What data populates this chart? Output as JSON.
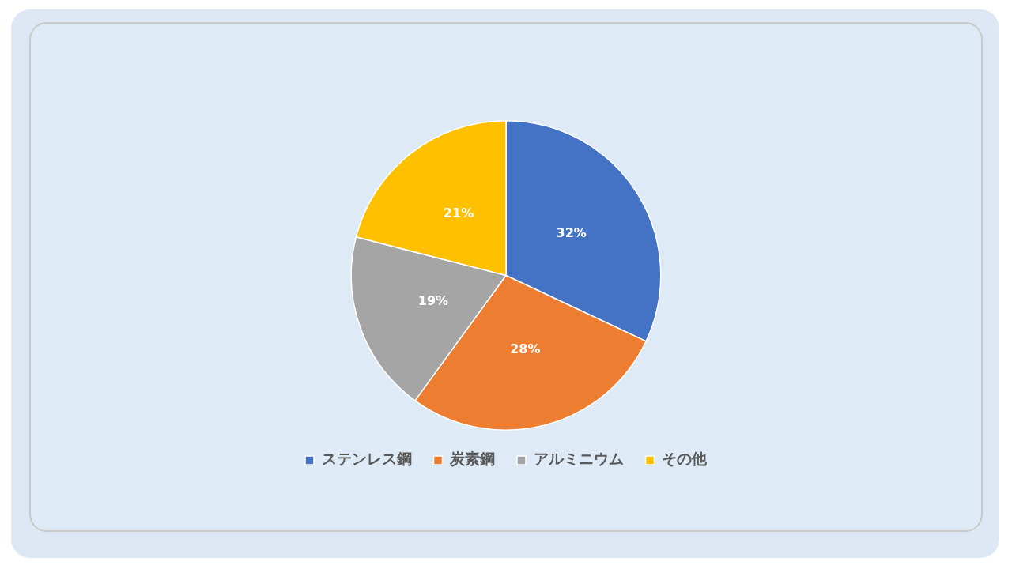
{
  "chart_data": {
    "type": "pie",
    "categories": [
      "ステンレス鋼",
      "炭素鋼",
      "アルミニウム",
      "その他"
    ],
    "values": [
      32,
      28,
      19,
      21
    ],
    "colors": [
      "#4472c4",
      "#ed7d31",
      "#a5a5a5",
      "#ffc000"
    ],
    "value_labels": [
      "32%",
      "28%",
      "19%",
      "21%"
    ],
    "legend": "bottom"
  }
}
